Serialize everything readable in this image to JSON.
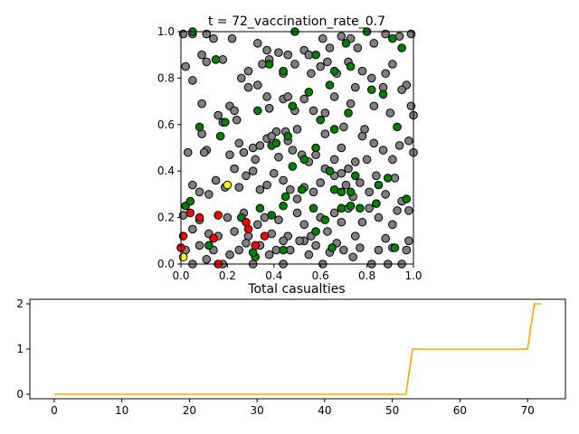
{
  "chart_data": [
    {
      "type": "scatter",
      "title": "t = 72_vaccination_rate_0.7",
      "xlabel": "",
      "ylabel": "",
      "xlim": [
        0,
        1
      ],
      "ylim": [
        0,
        1
      ],
      "x_ticks": [
        "0.0",
        "0.2",
        "0.4",
        "0.6",
        "0.8",
        "1.0"
      ],
      "y_ticks": [
        "0.0",
        "0.2",
        "0.4",
        "0.6",
        "0.8",
        "1.0"
      ],
      "grid": false,
      "marker_edge_color": "#000000",
      "status_colors": {
        "susceptible": "#808080",
        "vaccinated": "#008000",
        "infected": "#ff0000",
        "exposed": "#ffff00"
      },
      "series": [
        {
          "status": "susceptible",
          "points": [
            [
              0.01,
              0.99
            ],
            [
              0.05,
              0.99
            ],
            [
              0.11,
              0.99
            ],
            [
              0.14,
              0.97
            ],
            [
              0.22,
              0.97
            ],
            [
              0.33,
              0.95
            ],
            [
              0.37,
              0.92
            ],
            [
              0.42,
              0.91
            ],
            [
              0.46,
              0.9
            ],
            [
              0.53,
              0.92
            ],
            [
              0.55,
              0.9
            ],
            [
              0.61,
              0.97
            ],
            [
              0.64,
              0.93
            ],
            [
              0.69,
              0.98
            ],
            [
              0.73,
              0.97
            ],
            [
              0.76,
              0.93
            ],
            [
              0.83,
              0.95
            ],
            [
              0.88,
              0.99
            ],
            [
              0.94,
              0.98
            ],
            [
              0.99,
              0.99
            ],
            [
              0.02,
              0.85
            ],
            [
              0.09,
              0.9
            ],
            [
              0.11,
              0.87
            ],
            [
              0.18,
              0.88
            ],
            [
              0.26,
              0.8
            ],
            [
              0.29,
              0.83
            ],
            [
              0.33,
              0.77
            ],
            [
              0.35,
              0.86
            ],
            [
              0.38,
              0.88
            ],
            [
              0.44,
              0.82
            ],
            [
              0.49,
              0.86
            ],
            [
              0.56,
              0.82
            ],
            [
              0.6,
              0.85
            ],
            [
              0.63,
              0.87
            ],
            [
              0.67,
              0.82
            ],
            [
              0.72,
              0.87
            ],
            [
              0.75,
              0.76
            ],
            [
              0.78,
              0.83
            ],
            [
              0.82,
              0.8
            ],
            [
              0.88,
              0.82
            ],
            [
              0.91,
              0.86
            ],
            [
              0.97,
              0.77
            ],
            [
              0.05,
              0.79
            ],
            [
              0.09,
              0.69
            ],
            [
              0.11,
              0.49
            ],
            [
              0.16,
              0.64
            ],
            [
              0.21,
              0.68
            ],
            [
              0.23,
              0.66
            ],
            [
              0.24,
              0.62
            ],
            [
              0.29,
              0.76
            ],
            [
              0.37,
              0.72
            ],
            [
              0.38,
              0.67
            ],
            [
              0.41,
              0.57
            ],
            [
              0.44,
              0.71
            ],
            [
              0.46,
              0.72
            ],
            [
              0.49,
              0.66
            ],
            [
              0.5,
              0.58
            ],
            [
              0.53,
              0.71
            ],
            [
              0.57,
              0.66
            ],
            [
              0.62,
              0.65
            ],
            [
              0.66,
              0.72
            ],
            [
              0.7,
              0.59
            ],
            [
              0.73,
              0.69
            ],
            [
              0.79,
              0.58
            ],
            [
              0.83,
              0.68
            ],
            [
              0.87,
              0.76
            ],
            [
              0.9,
              0.65
            ],
            [
              0.95,
              0.75
            ],
            [
              0.99,
              0.68
            ],
            [
              1.0,
              0.64
            ],
            [
              0.03,
              0.48
            ],
            [
              0.09,
              0.56
            ],
            [
              0.1,
              0.48
            ],
            [
              0.18,
              0.61
            ],
            [
              0.21,
              0.47
            ],
            [
              0.25,
              0.52
            ],
            [
              0.27,
              0.48
            ],
            [
              0.31,
              0.5
            ],
            [
              0.32,
              0.45
            ],
            [
              0.34,
              0.51
            ],
            [
              0.37,
              0.54
            ],
            [
              0.39,
              0.55
            ],
            [
              0.42,
              0.46
            ],
            [
              0.45,
              0.57
            ],
            [
              0.46,
              0.53
            ],
            [
              0.48,
              0.49
            ],
            [
              0.52,
              0.47
            ],
            [
              0.55,
              0.44
            ],
            [
              0.58,
              0.47
            ],
            [
              0.62,
              0.56
            ],
            [
              0.66,
              0.45
            ],
            [
              0.69,
              0.5
            ],
            [
              0.72,
              0.41
            ],
            [
              0.75,
              0.44
            ],
            [
              0.78,
              0.55
            ],
            [
              0.8,
              0.45
            ],
            [
              0.83,
              0.52
            ],
            [
              0.87,
              0.49
            ],
            [
              0.91,
              0.45
            ],
            [
              0.94,
              0.51
            ],
            [
              0.98,
              0.53
            ],
            [
              1.0,
              0.48
            ],
            [
              0.05,
              0.34
            ],
            [
              0.08,
              0.31
            ],
            [
              0.12,
              0.3
            ],
            [
              0.15,
              0.36
            ],
            [
              0.19,
              0.33
            ],
            [
              0.23,
              0.41
            ],
            [
              0.25,
              0.33
            ],
            [
              0.28,
              0.38
            ],
            [
              0.31,
              0.4
            ],
            [
              0.34,
              0.32
            ],
            [
              0.37,
              0.34
            ],
            [
              0.4,
              0.39
            ],
            [
              0.44,
              0.36
            ],
            [
              0.47,
              0.32
            ],
            [
              0.5,
              0.28
            ],
            [
              0.53,
              0.33
            ],
            [
              0.57,
              0.31
            ],
            [
              0.6,
              0.35
            ],
            [
              0.62,
              0.41
            ],
            [
              0.66,
              0.38
            ],
            [
              0.69,
              0.39
            ],
            [
              0.71,
              0.34
            ],
            [
              0.74,
              0.29
            ],
            [
              0.77,
              0.35
            ],
            [
              0.81,
              0.31
            ],
            [
              0.84,
              0.38
            ],
            [
              0.88,
              0.3
            ],
            [
              0.92,
              0.37
            ],
            [
              0.95,
              0.27
            ],
            [
              0.98,
              0.23
            ],
            [
              0.01,
              0.21
            ],
            [
              0.05,
              0.15
            ],
            [
              0.08,
              0.19
            ],
            [
              0.12,
              0.13
            ],
            [
              0.16,
              0.12
            ],
            [
              0.2,
              0.2
            ],
            [
              0.23,
              0.14
            ],
            [
              0.27,
              0.22
            ],
            [
              0.29,
              0.12
            ],
            [
              0.33,
              0.17
            ],
            [
              0.36,
              0.2
            ],
            [
              0.39,
              0.13
            ],
            [
              0.42,
              0.19
            ],
            [
              0.46,
              0.12
            ],
            [
              0.5,
              0.22
            ],
            [
              0.53,
              0.17
            ],
            [
              0.56,
              0.12
            ],
            [
              0.6,
              0.2
            ],
            [
              0.63,
              0.14
            ],
            [
              0.66,
              0.22
            ],
            [
              0.69,
              0.18
            ],
            [
              0.72,
              0.24
            ],
            [
              0.75,
              0.12
            ],
            [
              0.78,
              0.18
            ],
            [
              0.81,
              0.24
            ],
            [
              0.85,
              0.2
            ],
            [
              0.88,
              0.11
            ],
            [
              0.91,
              0.17
            ],
            [
              0.93,
              0.23
            ],
            [
              0.98,
              0.1
            ],
            [
              0.02,
              0.06
            ],
            [
              0.05,
              0.0
            ],
            [
              0.08,
              0.08
            ],
            [
              0.11,
              0.02
            ],
            [
              0.14,
              0.06
            ],
            [
              0.18,
              0.0
            ],
            [
              0.21,
              0.04
            ],
            [
              0.25,
              0.06
            ],
            [
              0.28,
              0.09
            ],
            [
              0.31,
              0.0
            ],
            [
              0.34,
              0.08
            ],
            [
              0.38,
              0.04
            ],
            [
              0.41,
              0.06
            ],
            [
              0.44,
              0.1
            ],
            [
              0.47,
              0.06
            ],
            [
              0.53,
              0.1
            ],
            [
              0.55,
              0.04
            ],
            [
              0.58,
              0.08
            ],
            [
              0.61,
              0.0
            ],
            [
              0.64,
              0.05
            ],
            [
              0.67,
              0.09
            ],
            [
              0.7,
              0.06
            ],
            [
              0.74,
              0.03
            ],
            [
              0.77,
              0.07
            ],
            [
              0.82,
              0.0
            ],
            [
              0.85,
              0.06
            ],
            [
              0.89,
              0.0
            ],
            [
              0.91,
              0.07
            ],
            [
              0.95,
              0.0
            ],
            [
              0.97,
              0.06
            ],
            [
              0.44,
              0.0
            ],
            [
              0.51,
              0.1
            ]
          ]
        },
        {
          "status": "vaccinated",
          "points": [
            [
              0.05,
              1.0
            ],
            [
              0.49,
              1.0
            ],
            [
              0.71,
              0.95
            ],
            [
              0.8,
              1.0
            ],
            [
              0.91,
              0.97
            ],
            [
              0.95,
              0.93
            ],
            [
              0.15,
              0.88
            ],
            [
              0.38,
              0.86
            ],
            [
              0.44,
              0.83
            ],
            [
              0.58,
              0.9
            ],
            [
              0.66,
              0.83
            ],
            [
              0.73,
              0.85
            ],
            [
              0.87,
              0.73
            ],
            [
              0.64,
              0.77
            ],
            [
              0.55,
              0.74
            ],
            [
              0.48,
              0.68
            ],
            [
              0.33,
              0.66
            ],
            [
              0.19,
              0.61
            ],
            [
              0.08,
              0.59
            ],
            [
              0.17,
              0.55
            ],
            [
              0.39,
              0.51
            ],
            [
              0.41,
              0.52
            ],
            [
              0.46,
              0.55
            ],
            [
              0.53,
              0.45
            ],
            [
              0.58,
              0.5
            ],
            [
              0.6,
              0.62
            ],
            [
              0.66,
              0.58
            ],
            [
              0.72,
              0.65
            ],
            [
              0.82,
              0.75
            ],
            [
              0.93,
              0.59
            ],
            [
              0.48,
              0.42
            ],
            [
              0.52,
              0.32
            ],
            [
              0.64,
              0.4
            ],
            [
              0.66,
              0.32
            ],
            [
              0.69,
              0.31
            ],
            [
              0.73,
              0.31
            ],
            [
              0.75,
              0.38
            ],
            [
              0.85,
              0.34
            ],
            [
              0.89,
              0.37
            ],
            [
              0.84,
              0.26
            ],
            [
              0.77,
              0.24
            ],
            [
              0.73,
              0.25
            ],
            [
              0.69,
              0.24
            ],
            [
              0.62,
              0.19
            ],
            [
              0.58,
              0.14
            ],
            [
              0.57,
              0.24
            ],
            [
              0.45,
              0.29
            ],
            [
              0.44,
              0.25
            ],
            [
              0.39,
              0.21
            ],
            [
              0.34,
              0.24
            ],
            [
              0.26,
              0.2
            ],
            [
              0.02,
              0.25
            ],
            [
              0.04,
              0.27
            ],
            [
              0.12,
              0.08
            ],
            [
              0.32,
              0.03
            ],
            [
              0.44,
              0.06
            ],
            [
              0.65,
              0.07
            ],
            [
              0.92,
              0.07
            ],
            [
              0.97,
              0.28
            ],
            [
              0.31,
              0.05
            ]
          ]
        },
        {
          "status": "infected",
          "points": [
            [
              0.01,
              0.12
            ],
            [
              0.04,
              0.22
            ],
            [
              0.08,
              0.2
            ],
            [
              0.14,
              0.11
            ],
            [
              0.16,
              0.21
            ],
            [
              0.28,
              0.18
            ],
            [
              0.29,
              0.15
            ],
            [
              0.36,
              0.12
            ],
            [
              0.32,
              0.08
            ],
            [
              0.0,
              0.07
            ],
            [
              0.16,
              0.0
            ]
          ]
        },
        {
          "status": "exposed",
          "points": [
            [
              0.2,
              0.34
            ],
            [
              0.01,
              0.03
            ]
          ]
        }
      ]
    },
    {
      "type": "line",
      "title": "Total casualties",
      "xlabel": "",
      "ylabel": "",
      "xlim": [
        -3.6,
        75.6
      ],
      "ylim": [
        -0.1,
        2.1
      ],
      "x_ticks": [
        "0",
        "10",
        "20",
        "30",
        "40",
        "50",
        "60",
        "70"
      ],
      "y_ticks": [
        "0",
        "1",
        "2"
      ],
      "grid": false,
      "line_color": "#ffa500",
      "series": [
        {
          "x": [
            0,
            52,
            53,
            70,
            71,
            72
          ],
          "values": [
            0,
            0,
            1,
            1,
            2,
            2
          ]
        }
      ]
    }
  ]
}
